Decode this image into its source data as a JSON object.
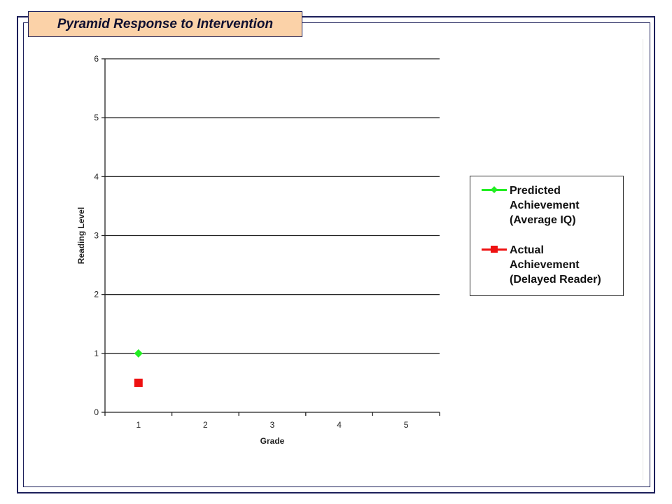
{
  "slide": {
    "title": "Pyramid Response to Intervention"
  },
  "chart_data": {
    "type": "scatter",
    "xlabel": "Grade",
    "ylabel": "Reading Level",
    "x_ticks": [
      "1",
      "2",
      "3",
      "4",
      "5"
    ],
    "y_ticks": [
      "0",
      "1",
      "2",
      "3",
      "4",
      "5",
      "6"
    ],
    "xlim": [
      0.5,
      5.5
    ],
    "ylim": [
      0,
      6
    ],
    "grid": "horizontal",
    "legend_position": "right",
    "series": [
      {
        "name": "Predicted Achievement (Average IQ)",
        "label_lines": "Predicted\nAchievement\n(Average IQ)",
        "color": "#22ee22",
        "marker": "diamond",
        "points": [
          {
            "x": 1,
            "y": 1
          }
        ]
      },
      {
        "name": "Actual Achievement (Delayed Reader)",
        "label_lines": "Actual\nAchievement\n(Delayed Reader)",
        "color": "#ee1111",
        "marker": "square",
        "points": [
          {
            "x": 1,
            "y": 0.5
          }
        ]
      }
    ]
  }
}
